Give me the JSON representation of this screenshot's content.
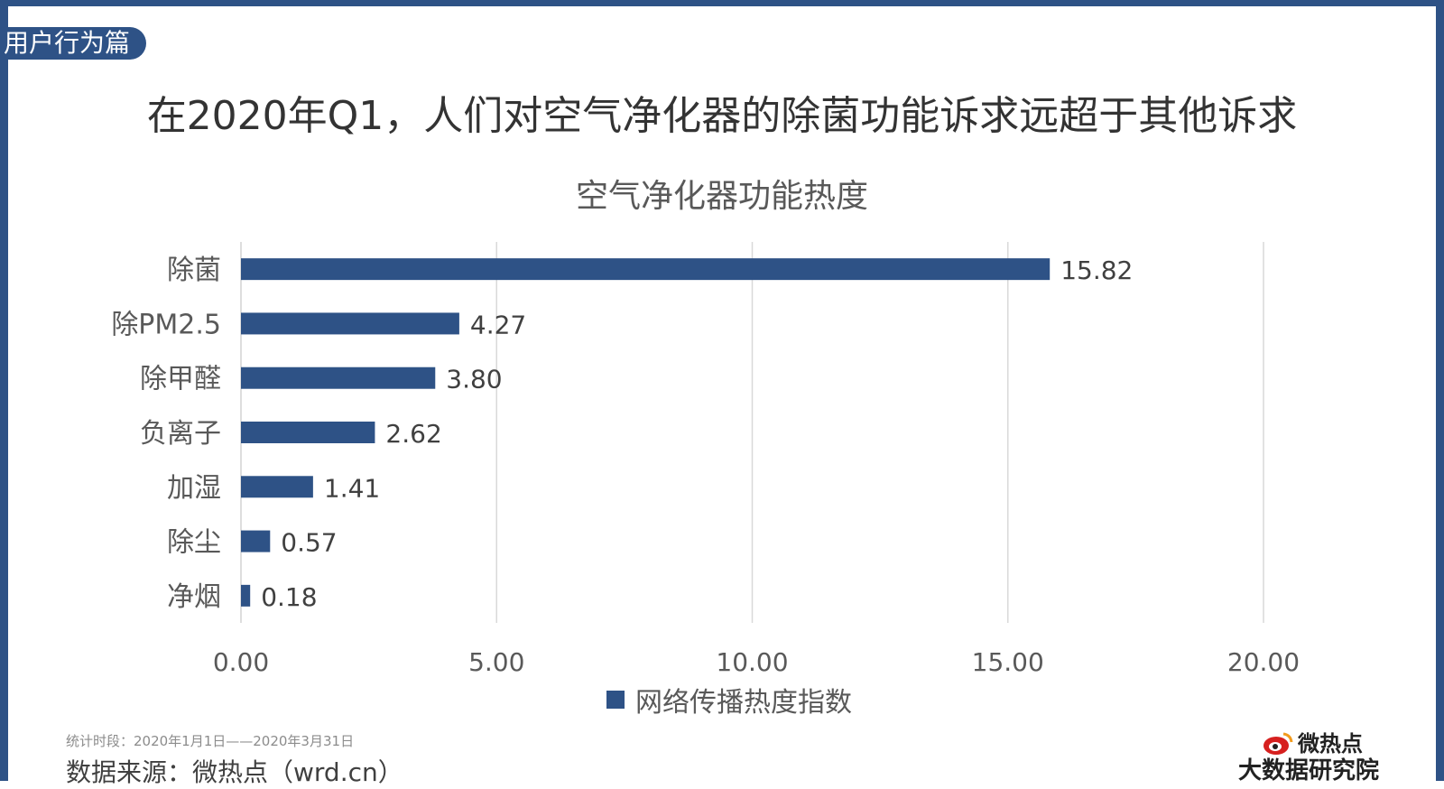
{
  "header": {
    "section_tag": "用户行为篇",
    "headline": "在2020年Q1，人们对空气净化器的除菌功能诉求远超于其他诉求"
  },
  "chart_data": {
    "type": "bar",
    "orientation": "horizontal",
    "title": "空气净化器功能热度",
    "categories": [
      "除菌",
      "除PM2.5",
      "除甲醛",
      "负离子",
      "加湿",
      "除尘",
      "净烟"
    ],
    "series": [
      {
        "name": "网络传播热度指数",
        "values": [
          15.82,
          4.27,
          3.8,
          2.62,
          1.41,
          0.57,
          0.18
        ]
      }
    ],
    "value_labels": [
      "15.82",
      "4.27",
      "3.80",
      "2.62",
      "1.41",
      "0.57",
      "0.18"
    ],
    "xticks": [
      "0.00",
      "5.00",
      "10.00",
      "15.00",
      "20.00"
    ],
    "xlim": [
      0,
      20
    ],
    "grid": true,
    "legend": "bottom",
    "color": "#2e5286"
  },
  "footer": {
    "period": "统计时段：2020年1月1日——2020年3月31日",
    "source": "数据来源：微热点（wrd.cn）",
    "logo_line1": "微热点",
    "logo_line2": "大数据研究院"
  },
  "colors": {
    "accent": "#2e5286",
    "logo_red": "#d6201f"
  }
}
